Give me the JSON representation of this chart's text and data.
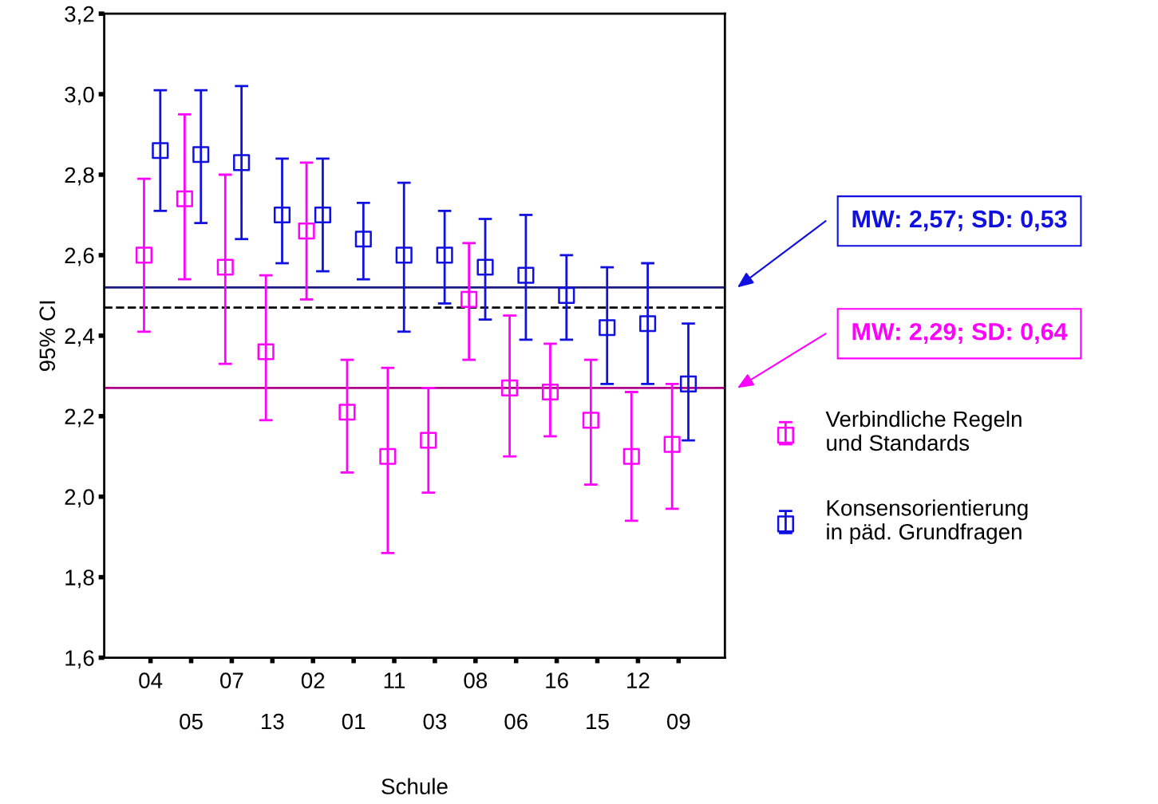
{
  "chart_data": {
    "type": "scatter",
    "xlabel": "Schule",
    "ylabel": "95% CI",
    "categories": [
      "04",
      "05",
      "07",
      "13",
      "02",
      "01",
      "11",
      "03",
      "08",
      "06",
      "16",
      "15",
      "12",
      "09"
    ],
    "series": [
      {
        "name": "Verbindliche Regeln\nund Standards",
        "color": "#ff00ff",
        "values": [
          2.6,
          2.74,
          2.57,
          2.36,
          2.66,
          2.21,
          2.1,
          2.14,
          2.49,
          2.27,
          2.26,
          2.19,
          2.1,
          2.13
        ],
        "errors": [
          [
            2.41,
            2.79
          ],
          [
            2.54,
            2.95
          ],
          [
            2.33,
            2.8
          ],
          [
            2.19,
            2.55
          ],
          [
            2.49,
            2.83
          ],
          [
            2.06,
            2.34
          ],
          [
            1.86,
            2.32
          ],
          [
            2.01,
            2.27
          ],
          [
            2.34,
            2.63
          ],
          [
            2.1,
            2.45
          ],
          [
            2.15,
            2.38
          ],
          [
            2.03,
            2.34
          ],
          [
            1.94,
            2.26
          ],
          [
            1.97,
            2.28
          ]
        ]
      },
      {
        "name": "Konsensorientierung\nin päd. Grundfragen",
        "color": "#1010e0",
        "values": [
          2.86,
          2.85,
          2.83,
          2.7,
          2.7,
          2.64,
          2.6,
          2.6,
          2.57,
          2.55,
          2.5,
          2.42,
          2.43,
          2.28
        ],
        "errors": [
          [
            2.71,
            3.01
          ],
          [
            2.68,
            3.01
          ],
          [
            2.64,
            3.02
          ],
          [
            2.58,
            2.84
          ],
          [
            2.56,
            2.84
          ],
          [
            2.54,
            2.73
          ],
          [
            2.41,
            2.78
          ],
          [
            2.48,
            2.71
          ],
          [
            2.44,
            2.69
          ],
          [
            2.39,
            2.7
          ],
          [
            2.39,
            2.6
          ],
          [
            2.28,
            2.57
          ],
          [
            2.28,
            2.58
          ],
          [
            2.14,
            2.43
          ]
        ]
      }
    ],
    "ylim": [
      1.6,
      3.2
    ],
    "yticks": [
      {
        "value": 1.6,
        "label": "1,6"
      },
      {
        "value": 1.8,
        "label": "1,8"
      },
      {
        "value": 2.0,
        "label": "2,0"
      },
      {
        "value": 2.2,
        "label": "2,2"
      },
      {
        "value": 2.4,
        "label": "2,4"
      },
      {
        "value": 2.6,
        "label": "2,6"
      },
      {
        "value": 2.8,
        "label": "2,8"
      },
      {
        "value": 3.0,
        "label": "3,0"
      },
      {
        "value": 3.2,
        "label": "3,2"
      }
    ],
    "ref_lines": [
      {
        "axis": "y",
        "value": 2.52,
        "color": "#1a1a80",
        "line_style": "solid"
      },
      {
        "axis": "y",
        "value": 2.47,
        "color": "#000000",
        "line_style": "dashed"
      },
      {
        "axis": "y",
        "value": 2.27,
        "color": "#b0008a",
        "line_style": "solid"
      }
    ],
    "annotations": [
      "MW: 2,57; SD: 0,53",
      "MW: 2,29; SD: 0,64"
    ],
    "marker": "square",
    "grid": false,
    "legend": "right"
  }
}
